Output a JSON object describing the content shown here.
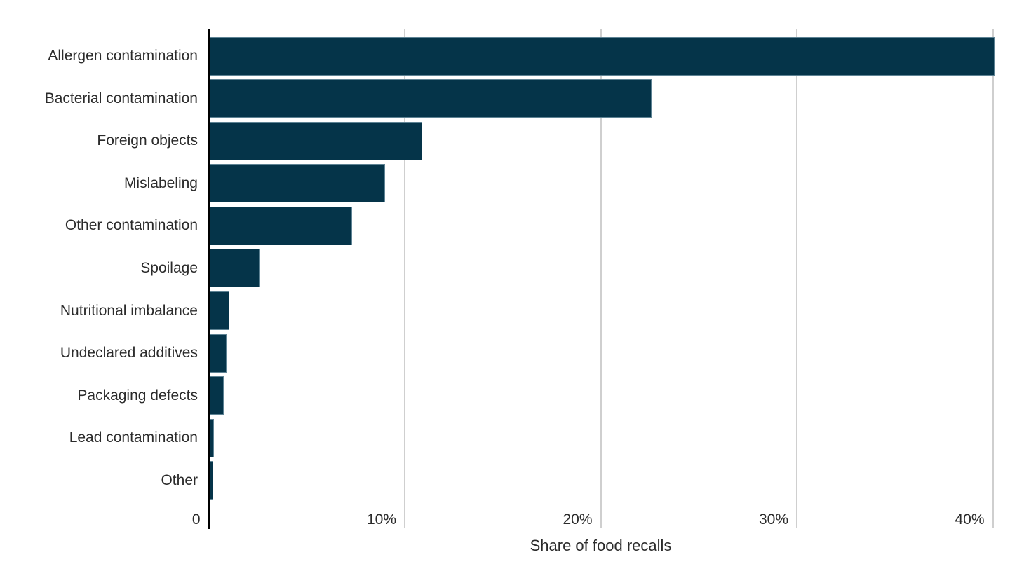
{
  "chart_data": {
    "type": "bar",
    "orientation": "horizontal",
    "xlabel": "Share of food recalls",
    "categories": [
      "Allergen contamination",
      "Bacterial contamination",
      "Foreign objects",
      "Mislabeling",
      "Other contamination",
      "Spoilage",
      "Nutritional imbalance",
      "Undeclared additives",
      "Packaging defects",
      "Lead contamination",
      "Other"
    ],
    "values": [
      40.1,
      22.6,
      10.9,
      9.0,
      7.3,
      2.6,
      1.05,
      0.92,
      0.78,
      0.26,
      0.24
    ],
    "value_unit": "%",
    "x_ticks": [
      {
        "label": "0",
        "value": 0
      },
      {
        "label": "10%",
        "value": 10
      },
      {
        "label": "20%",
        "value": 20
      },
      {
        "label": "30%",
        "value": 30
      },
      {
        "label": "40%",
        "value": 40
      }
    ],
    "xlim": [
      0,
      40.2
    ],
    "grid": true,
    "legend": false,
    "colors": {
      "bar": "#053449",
      "bar_border": "#aac5d2",
      "gridline": "#cfcfcf",
      "axis": "#000000",
      "text": "#2b2b2b",
      "background": "#ffffff"
    }
  }
}
